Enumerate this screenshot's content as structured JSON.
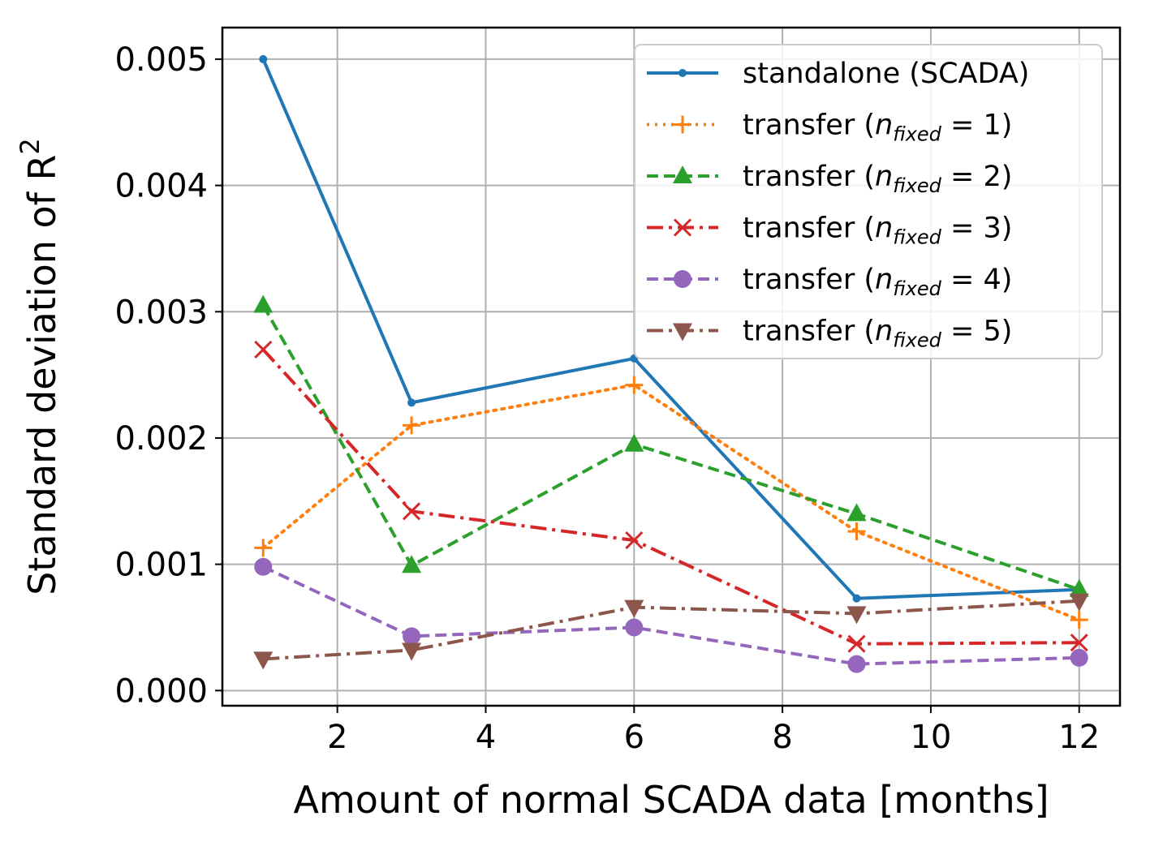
{
  "chart_data": {
    "type": "line",
    "title": "",
    "xlabel": "Amount of normal SCADA data [months]",
    "ylabel": "Standard deviation of R",
    "ylabel_superscript": "2",
    "xlim": [
      0.45,
      12.55
    ],
    "ylim": [
      -0.00012,
      0.00525
    ],
    "x_ticks": [
      2,
      4,
      6,
      8,
      10,
      12
    ],
    "x_tick_labels": [
      "2",
      "4",
      "6",
      "8",
      "10",
      "12"
    ],
    "y_ticks": [
      0.0,
      0.001,
      0.002,
      0.003,
      0.004,
      0.005
    ],
    "y_tick_labels": [
      "0.000",
      "0.001",
      "0.002",
      "0.003",
      "0.004",
      "0.005"
    ],
    "grid": true,
    "legend_position": "top-right",
    "x": [
      1,
      3,
      6,
      9,
      12
    ],
    "series": [
      {
        "name": "standalone (SCADA)",
        "legend_prefix": "standalone (SCADA)",
        "legend_var": "",
        "legend_sub": "",
        "legend_suffix": "",
        "color": "#1f77b4",
        "dash": "",
        "marker": "point",
        "values": [
          0.005,
          0.00228,
          0.00263,
          0.00073,
          0.0008
        ]
      },
      {
        "name": "transfer (n_fixed = 1)",
        "legend_prefix": "transfer (",
        "legend_var": "n",
        "legend_sub": "fixed",
        "legend_suffix": " = 1)",
        "color": "#ff7f0e",
        "dash": "3,7",
        "marker": "plus",
        "values": [
          0.00113,
          0.0021,
          0.00242,
          0.00126,
          0.00056
        ]
      },
      {
        "name": "transfer (n_fixed = 2)",
        "legend_prefix": "transfer (",
        "legend_var": "n",
        "legend_sub": "fixed",
        "legend_suffix": " = 2)",
        "color": "#2ca02c",
        "dash": "14,7",
        "marker": "triangle-up",
        "values": [
          0.00305,
          0.00099,
          0.00195,
          0.0014,
          0.0008
        ]
      },
      {
        "name": "transfer (n_fixed = 3)",
        "legend_prefix": "transfer (",
        "legend_var": "n",
        "legend_sub": "fixed",
        "legend_suffix": " = 3)",
        "color": "#d62728",
        "dash": "20,7,4,7",
        "marker": "x",
        "values": [
          0.0027,
          0.00142,
          0.00119,
          0.00037,
          0.00038
        ]
      },
      {
        "name": "transfer (n_fixed = 4)",
        "legend_prefix": "transfer (",
        "legend_var": "n",
        "legend_sub": "fixed",
        "legend_suffix": " = 4)",
        "color": "#9467bd",
        "dash": "14,7",
        "marker": "circle",
        "values": [
          0.00098,
          0.00043,
          0.0005,
          0.00021,
          0.00026
        ]
      },
      {
        "name": "transfer (n_fixed = 5)",
        "legend_prefix": "transfer (",
        "legend_var": "n",
        "legend_sub": "fixed",
        "legend_suffix": " = 5)",
        "color": "#8c564b",
        "dash": "20,7,4,7",
        "marker": "triangle-down",
        "values": [
          0.00025,
          0.00032,
          0.00066,
          0.00061,
          0.00071
        ]
      }
    ]
  }
}
